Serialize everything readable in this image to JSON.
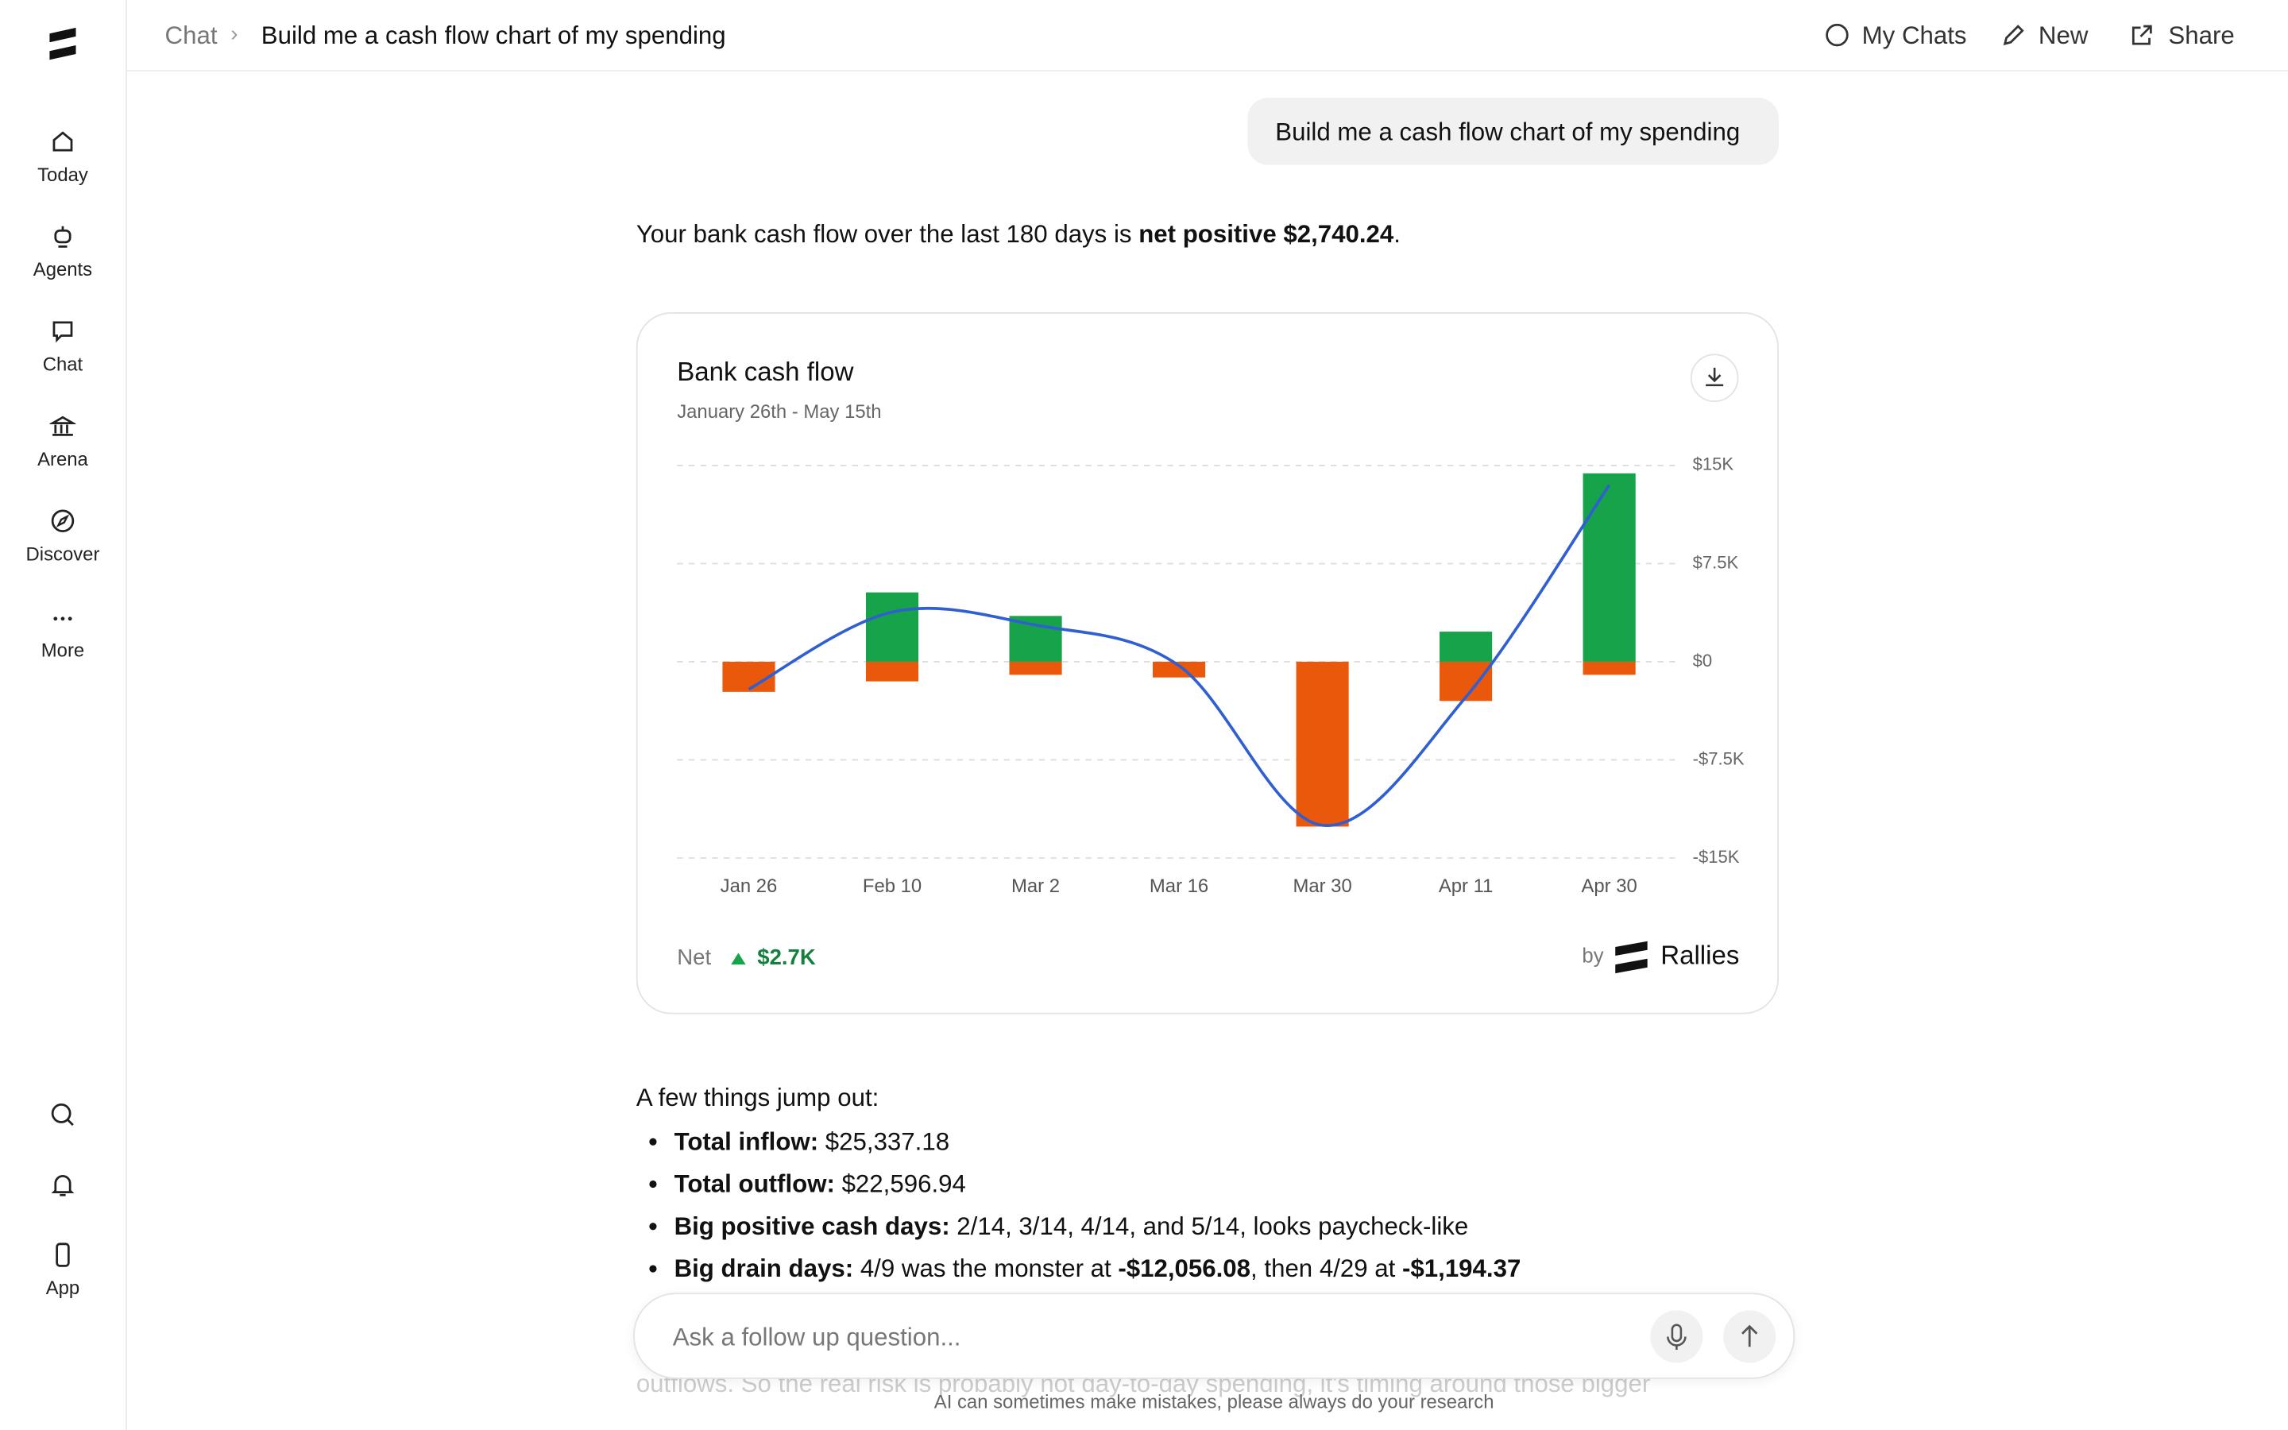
{
  "sidebar": {
    "items": [
      "Today",
      "Agents",
      "Chat",
      "Arena",
      "Discover",
      "More"
    ],
    "bottom": [
      "App"
    ]
  },
  "header": {
    "breadcrumb": "Chat",
    "title": "Build me a cash flow chart of my spending",
    "actions": [
      "My Chats",
      "New",
      "Share"
    ]
  },
  "user_message": "Build me a cash flow chart of my spending",
  "response": {
    "intro": [
      "Your bank cash flow over the last 180 days is ",
      "net positive $2,740.24",
      "."
    ],
    "lead": "A few things jump out:",
    "bullets": [
      [
        "Total inflow:",
        " $25,337.18"
      ],
      [
        "Total outflow:",
        " $22,596.94"
      ],
      [
        "Big positive cash days:",
        " 2/14, 3/14, 4/14, and 5/14, looks paycheck-like"
      ],
      [
        "Big drain days:",
        " 4/9 was the monster at ",
        "-$12,056.08",
        ", then 4/29 at ",
        "-$1,194.37"
      ]
    ],
    "faded": "outflows. So the real risk is probably not day-to-day spending, it's timing around those bigger"
  },
  "chart_data": {
    "type": "bar",
    "title": "Bank cash flow",
    "subtitle": "January 26th - May 15th",
    "categories": [
      "Jan 26",
      "Feb 10",
      "Mar 2",
      "Mar 16",
      "Mar 30",
      "Apr 11",
      "Apr 30"
    ],
    "series": [
      {
        "color": "#16a34a",
        "values": [
          0,
          5300,
          3500,
          0,
          0,
          2300,
          14400
        ]
      },
      {
        "color": "#ea580c",
        "values": [
          -2300,
          -1500,
          -1000,
          -1200,
          -12600,
          -3000,
          -1000
        ]
      },
      {
        "type": "line",
        "color": "#2f5fd0",
        "values": [
          -2100,
          3800,
          2800,
          -300,
          -12500,
          -2700,
          13500
        ]
      }
    ],
    "ylim": [
      -15000,
      15000
    ],
    "yticks": [
      {
        "value": -15000,
        "label": "-$15K"
      },
      {
        "value": -7500,
        "label": "-$7.5K"
      },
      {
        "value": 0,
        "label": "$0"
      },
      {
        "value": 7500,
        "label": "$7.5K"
      },
      {
        "value": 15000,
        "label": "$15K"
      }
    ],
    "grid": true,
    "net_label": "Net",
    "net_value": "$2.7K",
    "credit_by": "by",
    "credit_brand": "Rallies"
  },
  "input": {
    "placeholder": "Ask a follow up question..."
  },
  "disclaimer": "AI can sometimes make mistakes, please always do your research"
}
